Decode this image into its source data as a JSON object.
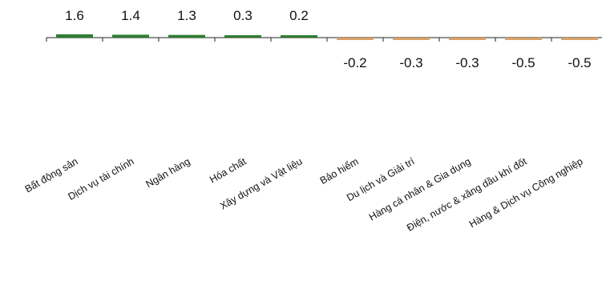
{
  "chart_data": {
    "type": "bar",
    "categories": [
      "Bất động sản",
      "Dịch vụ tài chính",
      "Ngân hàng",
      "Hóa chất",
      "Xây dựng và Vật liệu",
      "Bảo hiểm",
      "Du lịch và Giải trí",
      "Hàng cá nhân & Gia dụng",
      "Điện, nước & xăng dầu khí đốt",
      "Hàng & Dịch vụ Công nghiệp"
    ],
    "values": [
      1.6,
      1.4,
      1.3,
      0.3,
      0.2,
      -0.2,
      -0.3,
      -0.3,
      -0.5,
      -0.5
    ],
    "value_labels": [
      "1.6",
      "1.4",
      "1.3",
      "0.3",
      "0.2",
      "-0.2",
      "-0.3",
      "-0.3",
      "-0.5",
      "-0.5"
    ],
    "colors": {
      "positive": "#2e7d32",
      "negative": "#d9a066",
      "axis": "#222222",
      "text": "#111111"
    },
    "title": "",
    "xlabel": "",
    "ylabel": "",
    "grid": false,
    "legend": "none"
  }
}
